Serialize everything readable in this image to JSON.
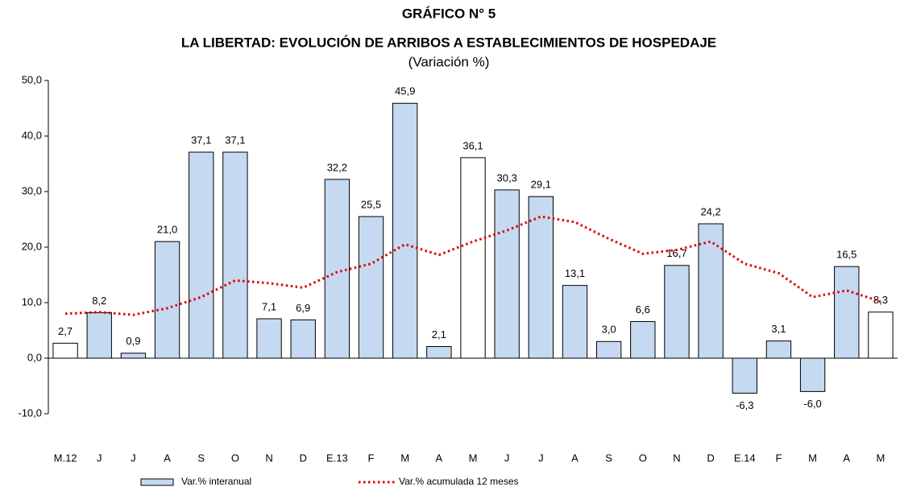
{
  "chart_data": {
    "type": "bar",
    "title": "GRÁFICO N° 5",
    "subtitle": "LA LIBERTAD: EVOLUCIÓN DE ARRIBOS A ESTABLECIMIENTOS DE HOSPEDAJE",
    "unit_note": "(Variación %)",
    "categories": [
      "M.12",
      "J",
      "J",
      "A",
      "S",
      "O",
      "N",
      "D",
      "E.13",
      "F",
      "M",
      "A",
      "M",
      "J",
      "J",
      "A",
      "S",
      "O",
      "N",
      "D",
      "E.14",
      "F",
      "M",
      "A",
      "M"
    ],
    "series": [
      {
        "name": "Var.% interanual",
        "type": "bar",
        "color": "#c5d9f1",
        "colors": [
          "#ffffff",
          "#c5d9f1",
          "#c5d9f1",
          "#c5d9f1",
          "#c5d9f1",
          "#c5d9f1",
          "#c5d9f1",
          "#c5d9f1",
          "#c5d9f1",
          "#c5d9f1",
          "#c5d9f1",
          "#c5d9f1",
          "#ffffff",
          "#c5d9f1",
          "#c5d9f1",
          "#c5d9f1",
          "#c5d9f1",
          "#c5d9f1",
          "#c5d9f1",
          "#c5d9f1",
          "#c5d9f1",
          "#c5d9f1",
          "#c5d9f1",
          "#c5d9f1",
          "#ffffff"
        ],
        "values": [
          2.7,
          8.2,
          0.9,
          21.0,
          37.1,
          37.1,
          7.1,
          6.9,
          32.2,
          25.5,
          45.9,
          2.1,
          36.1,
          30.3,
          29.1,
          13.1,
          3.0,
          6.6,
          16.7,
          24.2,
          -6.3,
          3.1,
          -6.0,
          16.5,
          8.3
        ],
        "value_labels": [
          "2,7",
          "8,2",
          "0,9",
          "21,0",
          "37,1",
          "37,1",
          "7,1",
          "6,9",
          "32,2",
          "25,5",
          "45,9",
          "2,1",
          "36,1",
          "30,3",
          "29,1",
          "13,1",
          "3,0",
          "6,6",
          "16,7",
          "24,2",
          "-6,3",
          "3,1",
          "-6,0",
          "16,5",
          "8,3"
        ]
      },
      {
        "name": "Var.% acumulada 12 meses",
        "type": "line",
        "color": "#e00000",
        "values": [
          8.0,
          8.3,
          7.8,
          9.0,
          11.0,
          14.0,
          13.5,
          12.7,
          15.5,
          17.0,
          20.5,
          18.6,
          21.0,
          23.0,
          25.5,
          24.5,
          21.5,
          18.8,
          19.5,
          21.0,
          17.0,
          15.3,
          11.0,
          12.2,
          10.2
        ]
      }
    ],
    "ylim": [
      -10,
      50
    ],
    "yticks": [
      {
        "value": -10,
        "label": "-10,0"
      },
      {
        "value": 0,
        "label": "0,0"
      },
      {
        "value": 10,
        "label": "10,0"
      },
      {
        "value": 20,
        "label": "20,0"
      },
      {
        "value": 30,
        "label": "30,0"
      },
      {
        "value": 40,
        "label": "40,0"
      },
      {
        "value": 50,
        "label": "50,0"
      }
    ],
    "grid": false,
    "legend": "bottom"
  }
}
